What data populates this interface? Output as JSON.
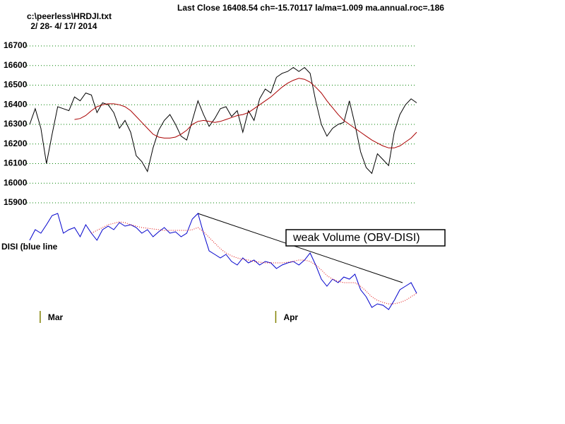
{
  "chart_data": [
    {
      "type": "line",
      "title": "Last Close 16408.54 ch=-15.70117  la/ma=1.009 ma.annual.roc=.186",
      "file_label": "c:\\peerless\\HRDJI.txt",
      "date_range": " 2/ 28- 4/ 17/ 2014",
      "ylim": [
        15880,
        16720
      ],
      "yticks": [
        15900,
        16000,
        16100,
        16200,
        16300,
        16400,
        16500,
        16600,
        16700
      ],
      "grid": true,
      "series": [
        {
          "color": "#000000",
          "values": [
            16300,
            16380,
            16280,
            16100,
            16250,
            16390,
            16380,
            16370,
            16440,
            16420,
            16460,
            16450,
            16360,
            16410,
            16400,
            16360,
            16280,
            16320,
            16260,
            16140,
            16110,
            16060,
            16180,
            16270,
            16320,
            16350,
            16300,
            16240,
            16220,
            16320,
            16420,
            16350,
            16290,
            16330,
            16380,
            16390,
            16340,
            16370,
            16260,
            16370,
            16320,
            16430,
            16480,
            16460,
            16540,
            16560,
            16570,
            16590,
            16570,
            16590,
            16560,
            16420,
            16300,
            16240,
            16280,
            16300,
            16310,
            16420,
            16300,
            16160,
            16080,
            16050,
            16150,
            16120,
            16090,
            16260,
            16350,
            16400,
            16430,
            16410
          ]
        },
        {
          "color": "#aa0000",
          "values": [
            null,
            null,
            null,
            null,
            null,
            null,
            null,
            null,
            16325,
            16330,
            16345,
            16370,
            16390,
            16400,
            16405,
            16405,
            16400,
            16390,
            16370,
            16340,
            16310,
            16280,
            16250,
            16235,
            16230,
            16230,
            16235,
            16250,
            16270,
            16300,
            16315,
            16320,
            16315,
            16310,
            16315,
            16325,
            16335,
            16345,
            16350,
            16360,
            16380,
            16400,
            16420,
            16440,
            16465,
            16490,
            16510,
            16525,
            16535,
            16530,
            16515,
            16490,
            16460,
            16420,
            16385,
            16350,
            16320,
            16300,
            16280,
            16260,
            16240,
            16220,
            16205,
            16190,
            16180,
            16180,
            16190,
            16210,
            16230,
            16260
          ]
        }
      ]
    },
    {
      "type": "line",
      "label": "DISI (blue line",
      "annotation": "weak Volume (OBV-DISI)",
      "ylim": [
        0,
        140
      ],
      "categories": [
        null,
        null,
        "Mar",
        null,
        null,
        null,
        null,
        null,
        null,
        null,
        null,
        null,
        null,
        null,
        null,
        null,
        null,
        null,
        null,
        null,
        null,
        null,
        null,
        null,
        null,
        null,
        null,
        null,
        null,
        null,
        null,
        null,
        null,
        null,
        null,
        null,
        null,
        null,
        null,
        null,
        null,
        null,
        null,
        null,
        "Apr",
        null,
        null,
        null,
        null,
        null,
        null,
        null,
        null,
        null,
        null,
        null,
        null,
        null,
        null,
        null,
        null,
        null,
        null,
        null,
        null,
        null,
        null,
        null,
        null,
        null
      ],
      "series": [
        {
          "color": "#0000cc",
          "values": [
            100,
            115,
            110,
            122,
            135,
            138,
            110,
            115,
            118,
            105,
            122,
            110,
            100,
            115,
            120,
            115,
            125,
            120,
            122,
            118,
            110,
            115,
            105,
            112,
            118,
            110,
            112,
            105,
            110,
            130,
            138,
            110,
            85,
            80,
            75,
            80,
            70,
            65,
            75,
            68,
            72,
            65,
            70,
            68,
            60,
            65,
            68,
            70,
            65,
            72,
            82,
            65,
            45,
            35,
            45,
            40,
            48,
            45,
            52,
            30,
            20,
            5,
            10,
            8,
            2,
            15,
            30,
            35,
            40,
            25
          ]
        },
        {
          "color": "#dd0000",
          "dashed": true,
          "values": [
            null,
            null,
            null,
            null,
            null,
            null,
            null,
            null,
            null,
            null,
            null,
            110,
            114,
            118,
            122,
            124,
            126,
            125,
            122,
            120,
            118,
            117,
            116,
            115,
            114,
            114,
            114,
            114,
            114,
            115,
            118,
            112,
            104,
            96,
            88,
            82,
            78,
            75,
            73,
            72,
            70,
            69,
            68,
            68,
            68,
            68,
            69,
            70,
            72,
            72,
            70,
            65,
            58,
            50,
            45,
            42,
            40,
            40,
            40,
            35,
            28,
            20,
            15,
            12,
            10,
            10,
            12,
            15,
            20,
            25
          ]
        }
      ]
    }
  ]
}
